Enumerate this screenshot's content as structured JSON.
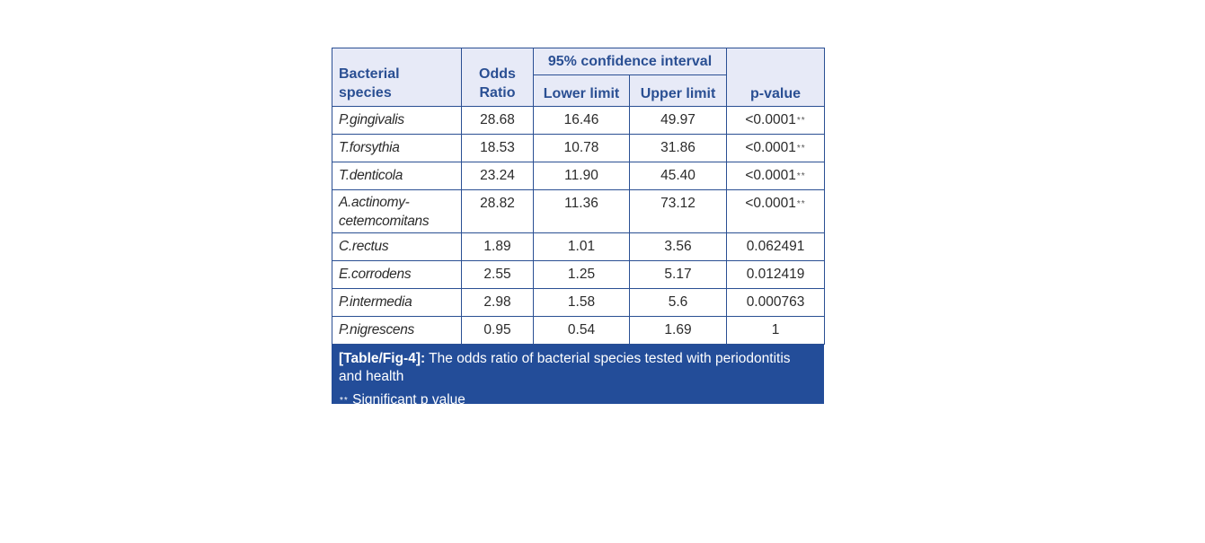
{
  "table": {
    "headers": {
      "species": [
        "Bacterial",
        "species"
      ],
      "odds": [
        "Odds",
        "Ratio"
      ],
      "ci": "95% confidence interval",
      "lower": "Lower limit",
      "upper": "Upper limit",
      "pvalue": "p-value"
    },
    "rows": [
      {
        "species": [
          "P.gingivalis"
        ],
        "odds": "28.68",
        "lower": "16.46",
        "upper": "49.97",
        "p": "<0.0001",
        "sig": "**"
      },
      {
        "species": [
          "T.forsythia"
        ],
        "odds": "18.53",
        "lower": "10.78",
        "upper": "31.86",
        "p": "<0.0001",
        "sig": "**"
      },
      {
        "species": [
          "T.denticola"
        ],
        "odds": "23.24",
        "lower": "11.90",
        "upper": "45.40",
        "p": "<0.0001",
        "sig": "**"
      },
      {
        "species": [
          "A.actinomy-",
          "cetemcomitans"
        ],
        "odds": "28.82",
        "lower": "11.36",
        "upper": "73.12",
        "p": "<0.0001",
        "sig": "**"
      },
      {
        "species": [
          "C.rectus"
        ],
        "odds": "1.89",
        "lower": "1.01",
        "upper": "3.56",
        "p": "0.062491",
        "sig": ""
      },
      {
        "species": [
          "E.corrodens"
        ],
        "odds": "2.55",
        "lower": "1.25",
        "upper": "5.17",
        "p": "0.012419",
        "sig": ""
      },
      {
        "species": [
          "P.intermedia"
        ],
        "odds": "2.98",
        "lower": "1.58",
        "upper": "5.6",
        "p": "0.000763",
        "sig": ""
      },
      {
        "species": [
          "P.nigrescens"
        ],
        "odds": "0.95",
        "lower": "0.54",
        "upper": "1.69",
        "p": "1",
        "sig": ""
      }
    ]
  },
  "caption": {
    "label": "[Table/Fig-4]:",
    "text": " The odds ratio of bacterial species tested with periodontitis and health",
    "note_marker": "**",
    "note_text": " Significant p value"
  },
  "colors": {
    "header_bg": "#e7eaf7",
    "accent_blue": "#2a4f93",
    "caption_bg": "#234d99"
  }
}
